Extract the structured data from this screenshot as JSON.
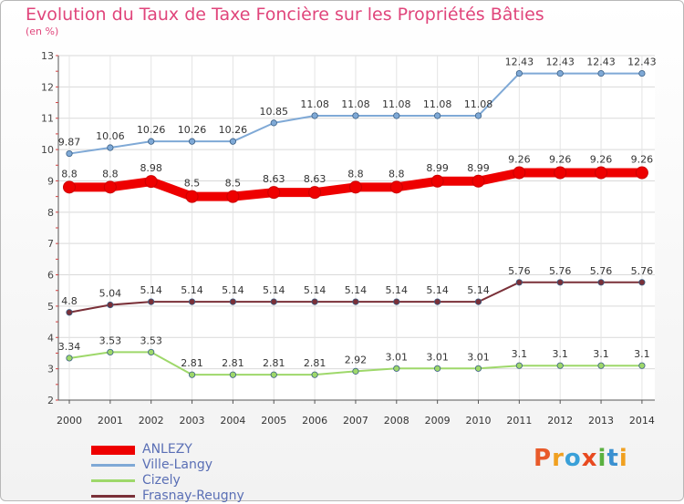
{
  "page": {
    "title": "Evolution du Taux de Taxe Foncière sur les Propriétés Bâties",
    "unit": "(en %)"
  },
  "logo": {
    "text": "Proxiti",
    "letters": [
      "P",
      "r",
      "o",
      "x",
      "i",
      "t",
      "i"
    ],
    "colors": [
      "#e85a2a",
      "#f0a020",
      "#3aa0d8",
      "#e84a20",
      "#5ab040",
      "#3a90d0",
      "#f0a020"
    ]
  },
  "chart_data": {
    "type": "line",
    "title": "Evolution du Taux de Taxe Foncière sur les Propriétés Bâties",
    "ylabel": "(en %)",
    "xlabel": "",
    "x": [
      "2000",
      "2001",
      "2002",
      "2003",
      "2004",
      "2005",
      "2006",
      "2007",
      "2008",
      "2009",
      "2010",
      "2011",
      "2012",
      "2013",
      "2014"
    ],
    "ylim": [
      2,
      13
    ],
    "yticks": [
      "2",
      "3",
      "4",
      "5",
      "6",
      "7",
      "8",
      "9",
      "10",
      "11",
      "12",
      "13"
    ],
    "grid": true,
    "legend_position": "bottom-left",
    "series": [
      {
        "name": "ANLEZY",
        "color": "#ee0000",
        "width": 10,
        "values": [
          8.8,
          8.8,
          8.98,
          8.5,
          8.5,
          8.63,
          8.63,
          8.8,
          8.8,
          8.99,
          8.99,
          9.26,
          9.26,
          9.26,
          9.26
        ],
        "labels": [
          "8.8",
          "8.8",
          "8.98",
          "8.5",
          "8.5",
          "8.63",
          "8.63",
          "8.8",
          "8.8",
          "8.99",
          "8.99",
          "9.26",
          "9.26",
          "9.26",
          "9.26"
        ]
      },
      {
        "name": "Ville-Langy",
        "color": "#7fa9d6",
        "width": 2,
        "values": [
          9.87,
          10.06,
          10.26,
          10.26,
          10.26,
          10.85,
          11.08,
          11.08,
          11.08,
          11.08,
          11.08,
          12.43,
          12.43,
          12.43,
          12.43
        ],
        "labels": [
          "9.87",
          "10.06",
          "10.26",
          "10.26",
          "10.26",
          "10.85",
          "11.08",
          "11.08",
          "11.08",
          "11.08",
          "11.08",
          "12.43",
          "12.43",
          "12.43",
          "12.43"
        ]
      },
      {
        "name": "Cizely",
        "color": "#9ed86a",
        "width": 2,
        "values": [
          3.34,
          3.53,
          3.53,
          2.81,
          2.81,
          2.81,
          2.81,
          2.92,
          3.01,
          3.01,
          3.01,
          3.1,
          3.1,
          3.1,
          3.1
        ],
        "labels": [
          "3.34",
          "3.53",
          "3.53",
          "2.81",
          "2.81",
          "2.81",
          "2.81",
          "2.92",
          "3.01",
          "3.01",
          "3.01",
          "3.1",
          "3.1",
          "3.1",
          "3.1"
        ]
      },
      {
        "name": "Frasnay-Reugny",
        "color": "#7a3038",
        "width": 2,
        "values": [
          4.8,
          5.04,
          5.14,
          5.14,
          5.14,
          5.14,
          5.14,
          5.14,
          5.14,
          5.14,
          5.14,
          5.76,
          5.76,
          5.76,
          5.76
        ],
        "labels": [
          "4.8",
          "5.04",
          "5.14",
          "5.14",
          "5.14",
          "5.14",
          "5.14",
          "5.14",
          "5.14",
          "5.14",
          "5.14",
          "5.76",
          "5.76",
          "5.76",
          "5.76"
        ]
      }
    ]
  }
}
